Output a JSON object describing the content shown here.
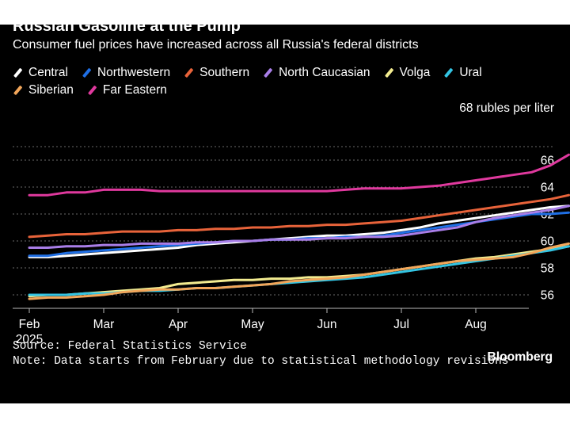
{
  "chart_data": {
    "type": "line",
    "title": "Russian Gasoline at the Pump",
    "subtitle": "Consumer fuel prices have increased across all Russia's federal districts",
    "unit_label": "68 rubles per liter",
    "ylim": [
      55,
      68
    ],
    "yticks": [
      56,
      58,
      60,
      62,
      64,
      66
    ],
    "x_month_ticks": [
      {
        "label": "Feb",
        "week": 0
      },
      {
        "label": "Mar",
        "week": 4
      },
      {
        "label": "Apr",
        "week": 8
      },
      {
        "label": "May",
        "week": 12
      },
      {
        "label": "Jun",
        "week": 16
      },
      {
        "label": "Jul",
        "week": 20
      },
      {
        "label": "Aug",
        "week": 24
      }
    ],
    "x_year_label": "2025",
    "series": [
      {
        "name": "Central",
        "color": "#ffffff",
        "values": [
          58.8,
          58.8,
          58.9,
          59.0,
          59.1,
          59.2,
          59.3,
          59.4,
          59.5,
          59.7,
          59.8,
          59.9,
          60.0,
          60.1,
          60.2,
          60.3,
          60.4,
          60.4,
          60.5,
          60.6,
          60.8,
          61.0,
          61.3,
          61.5,
          61.7,
          61.9,
          62.1,
          62.3,
          62.5,
          62.6
        ]
      },
      {
        "name": "Northwestern",
        "color": "#1f6fe5",
        "values": [
          58.9,
          58.9,
          59.1,
          59.2,
          59.3,
          59.4,
          59.5,
          59.6,
          59.7,
          59.8,
          59.9,
          60.0,
          60.0,
          60.1,
          60.1,
          60.2,
          60.2,
          60.3,
          60.3,
          60.4,
          60.6,
          60.8,
          61.0,
          61.2,
          61.4,
          61.6,
          61.8,
          62.0,
          62.0,
          62.1
        ]
      },
      {
        "name": "Southern",
        "color": "#e8633a",
        "values": [
          60.3,
          60.4,
          60.5,
          60.5,
          60.6,
          60.7,
          60.7,
          60.7,
          60.8,
          60.8,
          60.9,
          60.9,
          61.0,
          61.0,
          61.1,
          61.1,
          61.2,
          61.2,
          61.3,
          61.4,
          61.5,
          61.7,
          61.9,
          62.1,
          62.3,
          62.5,
          62.7,
          62.9,
          63.1,
          63.4
        ]
      },
      {
        "name": "North Caucasian",
        "color": "#a97ee8",
        "values": [
          59.5,
          59.5,
          59.6,
          59.6,
          59.7,
          59.7,
          59.8,
          59.8,
          59.8,
          59.9,
          59.9,
          60.0,
          60.0,
          60.1,
          60.1,
          60.1,
          60.2,
          60.2,
          60.3,
          60.3,
          60.4,
          60.6,
          60.8,
          61.0,
          61.4,
          61.7,
          61.9,
          62.1,
          62.3,
          62.6
        ]
      },
      {
        "name": "Volga",
        "color": "#f3ec90",
        "values": [
          55.9,
          56.0,
          56.0,
          56.1,
          56.2,
          56.3,
          56.4,
          56.5,
          56.8,
          56.9,
          57.0,
          57.1,
          57.1,
          57.2,
          57.2,
          57.3,
          57.3,
          57.4,
          57.5,
          57.7,
          57.9,
          58.1,
          58.3,
          58.5,
          58.7,
          58.8,
          59.0,
          59.2,
          59.4,
          59.6
        ]
      },
      {
        "name": "Ural",
        "color": "#33c4e3",
        "values": [
          56.0,
          56.0,
          56.0,
          56.1,
          56.1,
          56.2,
          56.3,
          56.3,
          56.4,
          56.5,
          56.5,
          56.6,
          56.7,
          56.8,
          56.9,
          57.0,
          57.1,
          57.2,
          57.3,
          57.5,
          57.7,
          57.9,
          58.1,
          58.3,
          58.5,
          58.7,
          58.9,
          59.1,
          59.3,
          59.6
        ]
      },
      {
        "name": "Siberian",
        "color": "#f2a65a",
        "values": [
          55.7,
          55.8,
          55.8,
          55.9,
          56.0,
          56.2,
          56.3,
          56.4,
          56.4,
          56.5,
          56.5,
          56.6,
          56.7,
          56.8,
          57.0,
          57.1,
          57.2,
          57.3,
          57.5,
          57.7,
          57.9,
          58.1,
          58.3,
          58.5,
          58.6,
          58.7,
          58.8,
          59.1,
          59.5,
          59.8
        ]
      },
      {
        "name": "Far Eastern",
        "color": "#e0399e",
        "values": [
          63.4,
          63.4,
          63.6,
          63.6,
          63.8,
          63.8,
          63.8,
          63.7,
          63.7,
          63.7,
          63.7,
          63.7,
          63.7,
          63.7,
          63.7,
          63.7,
          63.7,
          63.8,
          63.9,
          63.9,
          63.9,
          64.0,
          64.1,
          64.3,
          64.5,
          64.7,
          64.9,
          65.1,
          65.6,
          66.4
        ]
      }
    ]
  },
  "footer": {
    "source": "Source: Federal Statistics Service",
    "note": "Note: Data starts from February due to statistical methodology revisions"
  },
  "branding": {
    "logo_text": "Bloomberg"
  }
}
